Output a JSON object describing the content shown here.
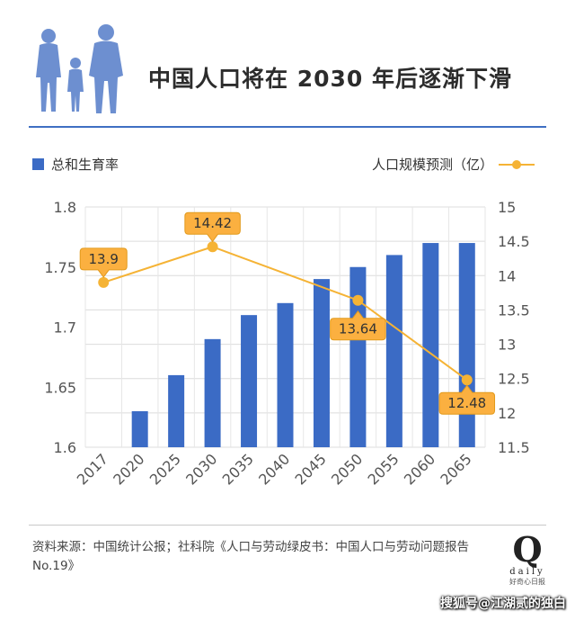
{
  "title": "中国人口将在 2030 年后逐渐下滑",
  "legend": {
    "bar_label": "总和生育率",
    "line_label": "人口规模预测（亿）"
  },
  "source": "资料来源：中国统计公报；社科院《人口与劳动绿皮书：中国人口与劳动问题报告 No.19》",
  "logo": {
    "letter": "Q",
    "word": "daily",
    "sub": "好奇心日报"
  },
  "watermark": "搜狐号@江湖贰的独白",
  "colors": {
    "bar": "#3b6bc5",
    "line": "#f5b335",
    "label_fill": "#fbb040",
    "rule": "#3f6fc3"
  },
  "icons": {
    "header": "family-silhouette-icon"
  },
  "chart_data": {
    "type": "bar+line",
    "categories": [
      "2017",
      "2020",
      "2025",
      "2030",
      "2035",
      "2040",
      "2045",
      "2050",
      "2055",
      "2060",
      "2065"
    ],
    "series": [
      {
        "name": "总和生育率",
        "type": "bar",
        "axis": "left",
        "values": [
          1.6,
          1.63,
          1.66,
          1.69,
          1.71,
          1.72,
          1.74,
          1.75,
          1.76,
          1.77,
          1.77
        ]
      },
      {
        "name": "人口规模预测（亿）",
        "type": "line",
        "axis": "right",
        "x": [
          "2017",
          "2030",
          "2050",
          "2065"
        ],
        "values": [
          13.9,
          14.42,
          13.64,
          12.48
        ],
        "labels": [
          "13.9",
          "14.42",
          "13.64",
          "12.48"
        ]
      }
    ],
    "y_left": {
      "min": 1.6,
      "max": 1.8,
      "ticks": [
        "1.6",
        "1.65",
        "1.7",
        "1.75",
        "1.8"
      ]
    },
    "y_right": {
      "min": 11.5,
      "max": 15,
      "ticks": [
        "11.5",
        "12",
        "12.5",
        "13",
        "13.5",
        "14",
        "14.5",
        "15"
      ]
    },
    "grid": true,
    "legend_position": "top"
  }
}
